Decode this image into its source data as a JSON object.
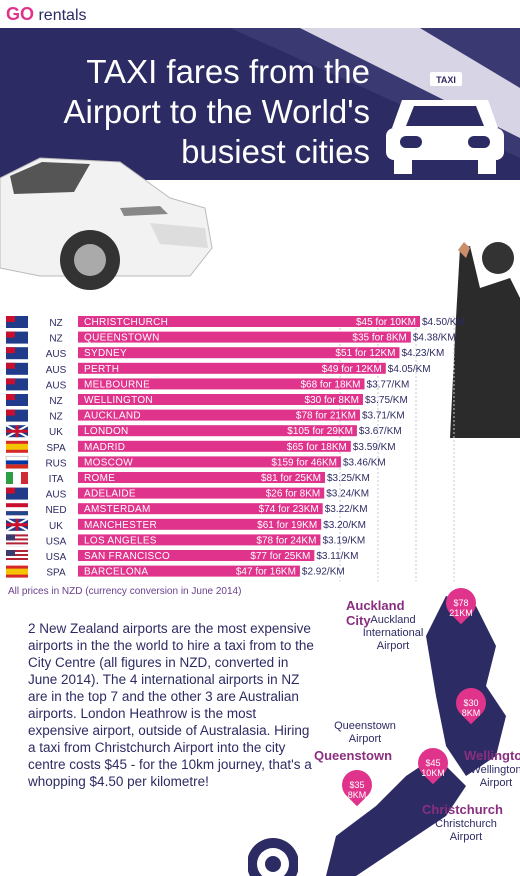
{
  "logo": {
    "go": "GO",
    "rentals": "rentals"
  },
  "header": {
    "title_line1": "TAXI fares from the",
    "title_line2": "Airport to the World's",
    "title_line3": "busiest cities",
    "taxi_sign": "TAXI"
  },
  "chart_data": {
    "type": "bar",
    "categories": [
      "CHRISTCHURCH",
      "QUEENSTOWN",
      "SYDNEY",
      "PERTH",
      "MELBOURNE",
      "WELLINGTON",
      "AUCKLAND",
      "LONDON",
      "MADRID",
      "MOSCOW",
      "ROME",
      "ADELAIDE",
      "AMSTERDAM",
      "MANCHESTER",
      "LOS ANGELES",
      "SAN FRANCISCO",
      "BARCELONA"
    ],
    "country_codes": [
      "NZ",
      "NZ",
      "AUS",
      "AUS",
      "AUS",
      "NZ",
      "NZ",
      "UK",
      "SPA",
      "RUS",
      "ITA",
      "AUS",
      "NED",
      "UK",
      "USA",
      "USA",
      "SPA"
    ],
    "fare_labels": [
      "$45 for 10KM",
      "$35 for 8KM",
      "$51 for 12KM",
      "$49 for 12KM",
      "$68 for 18KM",
      "$30 for 8KM",
      "$78 for 21KM",
      "$105 for 29KM",
      "$65 for 18KM",
      "$159 for 46KM",
      "$81 for 25KM",
      "$26 for 8KM",
      "$74 for 23KM",
      "$61 for 19KM",
      "$78 for 24KM",
      "$77 for 25KM",
      "$47 for 16KM"
    ],
    "perkm_labels": [
      "$4.50/KM",
      "$4.38/KM",
      "$4.23/KM",
      "$4.05/KM",
      "$3.77/KM",
      "$3.75/KM",
      "$3.71/KM",
      "$3.67/KM",
      "$3.59/KM",
      "$3.46/KM",
      "$3.25/KM",
      "$3.24/KM",
      "$3.22/KM",
      "$3.20/KM",
      "$3.19/KM",
      "$3.11/KM",
      "$2.92/KM"
    ],
    "values": [
      4.5,
      4.38,
      4.23,
      4.05,
      3.77,
      3.75,
      3.71,
      3.67,
      3.59,
      3.46,
      3.25,
      3.24,
      3.22,
      3.2,
      3.19,
      3.11,
      2.92
    ],
    "bar_color": "#e0348c",
    "flag_colors": {
      "NZ": "#1f3b8a",
      "AUS": "#1f3b8a",
      "UK": "#1f3b8a",
      "SPA": "#d62828",
      "RUS": "#ffffff",
      "ITA": "#2e9e44",
      "NED": "#c8102e",
      "USA": "#b22234"
    }
  },
  "footnote": "All prices in NZD (currency conversion in June 2014)",
  "body_text": "2 New Zealand airports are the most expensive airports in the the world to hire a taxi from to the City Centre (all figures in NZD, converted in June 2014). The 4 international airports in NZ are in the top 7 and the other 3 are Australian airports. London Heathrow is the most expensive airport, outside of Australasia. Hiring a taxi from Christchurch Airport into the city centre costs $45 - for the 10km journey, that's a whopping $4.50 per kilometre!",
  "map": {
    "auckland": {
      "city": "Auckland City",
      "airport": "Auckland International Airport",
      "pin_price": "$78",
      "pin_km": "21KM"
    },
    "wellington": {
      "city": "Wellington",
      "airport": "Wellington Airport",
      "pin_price": "$30",
      "pin_km": "8KM"
    },
    "queenstown": {
      "city": "Queenstown",
      "airport": "Queenstown Airport",
      "pin_price": "$35",
      "pin_km": "8KM"
    },
    "christchurch": {
      "city": "Christchurch",
      "airport": "Christchurch Airport",
      "pin_price": "$45",
      "pin_km": "10KM"
    }
  },
  "colors": {
    "navy": "#2d2b63",
    "pink": "#e0348c",
    "purple": "#8a2f7f"
  }
}
